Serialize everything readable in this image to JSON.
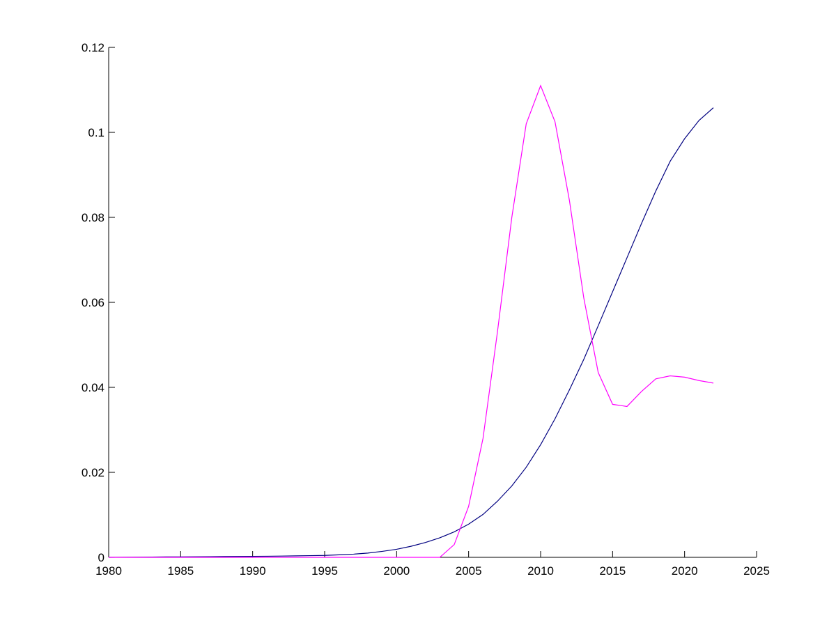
{
  "chart_data": {
    "type": "line",
    "x": [
      1980,
      1981,
      1982,
      1983,
      1984,
      1985,
      1986,
      1987,
      1988,
      1989,
      1990,
      1991,
      1992,
      1993,
      1994,
      1995,
      1996,
      1997,
      1998,
      1999,
      2000,
      2001,
      2002,
      2003,
      2004,
      2005,
      2006,
      2007,
      2008,
      2009,
      2010,
      2011,
      2012,
      2013,
      2014,
      2015,
      2016,
      2017,
      2018,
      2019,
      2020,
      2021,
      2022
    ],
    "series": [
      {
        "color": "#000080",
        "values": [
          0,
          3e-05,
          5e-05,
          7e-05,
          0.0001,
          0.0001,
          0.00013,
          0.00015,
          0.00018,
          0.0002,
          0.00022,
          0.00026,
          0.0003,
          0.00035,
          0.0004,
          0.00045,
          0.0006,
          0.00075,
          0.001,
          0.0014,
          0.0019,
          0.0026,
          0.0035,
          0.0046,
          0.006,
          0.0078,
          0.0101,
          0.0132,
          0.0168,
          0.0212,
          0.0265,
          0.0326,
          0.0394,
          0.0466,
          0.0545,
          0.0625,
          0.0705,
          0.0785,
          0.0862,
          0.0932,
          0.0985,
          0.1028,
          0.1058
        ]
      },
      {
        "color": "#ff00ff",
        "values": [
          0,
          0,
          0,
          0,
          0,
          0,
          0,
          0,
          0,
          0,
          0,
          0,
          0,
          0,
          0,
          0,
          0,
          0,
          0,
          0,
          0,
          0,
          0,
          0,
          0.003,
          0.012,
          0.028,
          0.053,
          0.08,
          0.102,
          0.111,
          0.1025,
          0.084,
          0.061,
          0.0435,
          0.036,
          0.0355,
          0.039,
          0.042,
          0.0427,
          0.0424,
          0.0416,
          0.041
        ]
      }
    ],
    "xlim": [
      1980,
      2025
    ],
    "xticks": [
      1980,
      1985,
      1990,
      1995,
      2000,
      2005,
      2010,
      2015,
      2020,
      2025
    ],
    "ylim": [
      0,
      0.12
    ],
    "yticks": [
      0,
      0.02,
      0.04,
      0.06,
      0.08,
      0.1,
      0.12
    ]
  }
}
